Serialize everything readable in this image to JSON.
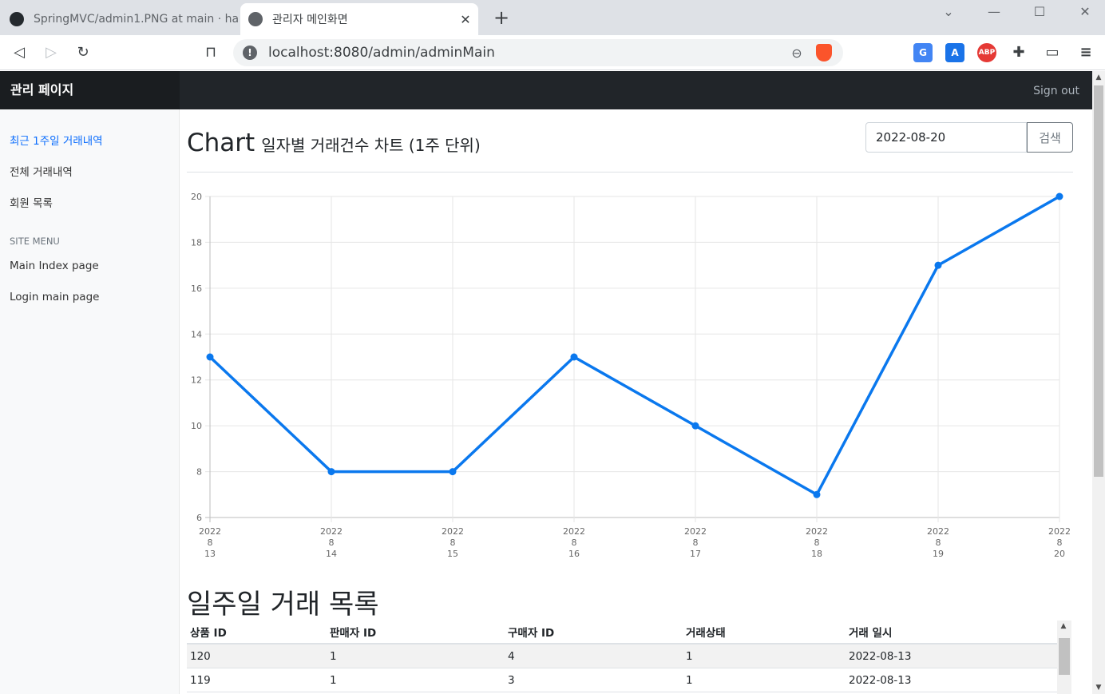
{
  "browser": {
    "tabs": [
      {
        "title": "SpringMVC/admin1.PNG at main · ha",
        "active": false
      },
      {
        "title": "관리자 메인화면",
        "active": true
      }
    ],
    "url": "localhost:8080/admin/adminMain"
  },
  "header": {
    "brand": "관리 페이지",
    "signout": "Sign out"
  },
  "sidebar": {
    "items": [
      {
        "label": "최근 1주일 거래내역",
        "active": true
      },
      {
        "label": "전체 거래내역"
      },
      {
        "label": "회원 목록"
      }
    ],
    "section_heading": "Site Menu",
    "site_menu": [
      {
        "label": "Main Index page"
      },
      {
        "label": "Login main page"
      }
    ]
  },
  "main": {
    "title": "Chart",
    "subtitle": "일자별 거래건수 차트 (1주 단위)",
    "date_value": "2022-08-20",
    "search_label": "검색",
    "list_title": "일주일 거래 목록",
    "table": {
      "headers": [
        "상품 ID",
        "판매자 ID",
        "구매자 ID",
        "거래상태",
        "거래 일시"
      ],
      "rows": [
        [
          "120",
          "1",
          "4",
          "1",
          "2022-08-13"
        ],
        [
          "119",
          "1",
          "3",
          "1",
          "2022-08-13"
        ]
      ]
    }
  },
  "chart_data": {
    "type": "line",
    "categories": [
      [
        "2022",
        "8",
        "13"
      ],
      [
        "2022",
        "8",
        "14"
      ],
      [
        "2022",
        "8",
        "15"
      ],
      [
        "2022",
        "8",
        "16"
      ],
      [
        "2022",
        "8",
        "17"
      ],
      [
        "2022",
        "8",
        "18"
      ],
      [
        "2022",
        "8",
        "19"
      ],
      [
        "2022",
        "8",
        "20"
      ]
    ],
    "series": [
      {
        "values": [
          13,
          8,
          8,
          13,
          10,
          7,
          17,
          20
        ]
      }
    ],
    "ylim": [
      6,
      20
    ],
    "yticks": [
      "6",
      "8",
      "10",
      "12",
      "14",
      "16",
      "18",
      "20"
    ],
    "grid": true,
    "color": "#0a78ee"
  }
}
